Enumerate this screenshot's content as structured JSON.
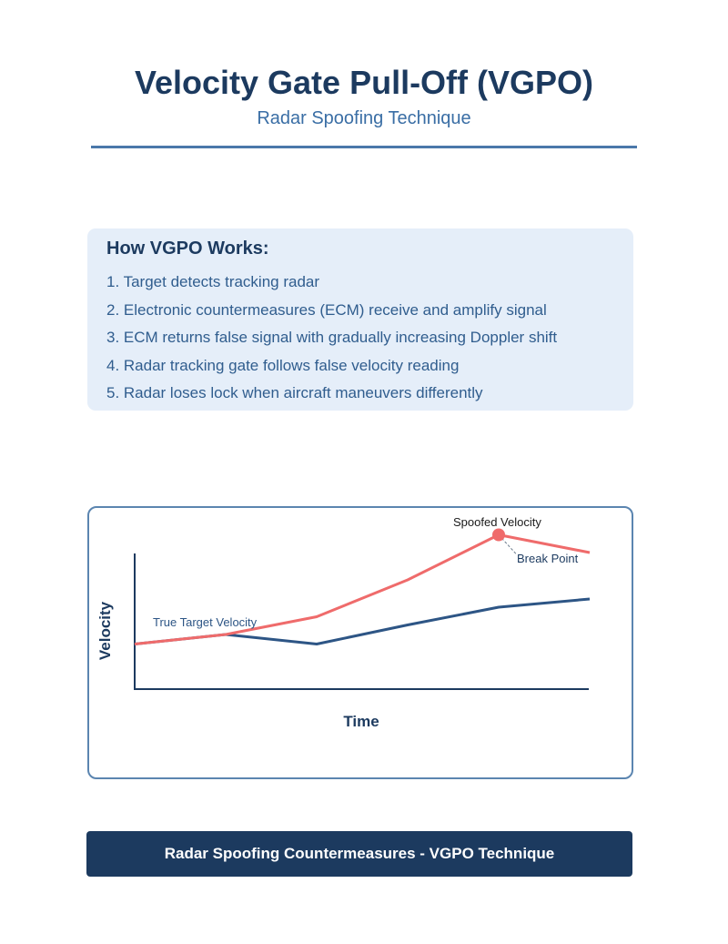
{
  "header": {
    "title": "Velocity Gate Pull-Off (VGPO)",
    "subtitle": "Radar Spoofing Technique"
  },
  "steps": {
    "heading": "How VGPO Works:",
    "items": [
      "1. Target detects tracking radar",
      "2. Electronic countermeasures (ECM) receive and amplify signal",
      "3. ECM returns false signal with gradually increasing Doppler shift",
      "4. Radar tracking gate follows false velocity reading",
      "5. Radar loses lock when aircraft maneuvers differently"
    ]
  },
  "chart": {
    "xlabel": "Time",
    "ylabel": "Velocity",
    "true_label": "True Target Velocity",
    "spoofed_label": "Spoofed Velocity",
    "break_label": "Break Point"
  },
  "chart_data": {
    "type": "line",
    "xlabel": "Time",
    "ylabel": "Velocity",
    "x": [
      0,
      1,
      2,
      3,
      4,
      5
    ],
    "ylim": [
      0,
      100
    ],
    "xlim": [
      0,
      5
    ],
    "series": [
      {
        "name": "True Target Velocity",
        "values": [
          33,
          40,
          33,
          47,
          60,
          66
        ],
        "color": "#2d5585"
      },
      {
        "name": "Spoofed Velocity",
        "values": [
          33,
          40,
          53,
          80,
          113,
          100
        ],
        "color": "#ef6b6b"
      }
    ],
    "annotations": [
      {
        "label": "Break Point",
        "x": 4,
        "y": 113
      }
    ],
    "grid": false,
    "legend": "none"
  },
  "footer": {
    "text": "Radar Spoofing Countermeasures - VGPO Technique"
  },
  "colors": {
    "navy": "#1c3a5f",
    "blue_text": "#3a6ea5",
    "true_line": "#2d5585",
    "spoofed_line": "#ef6b6b",
    "box_bg": "#e5eef9"
  }
}
